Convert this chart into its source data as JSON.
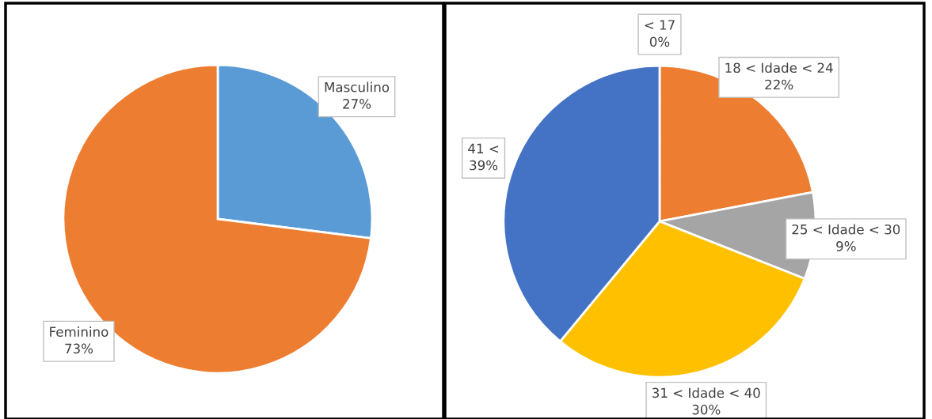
{
  "chart_data": [
    {
      "type": "pie",
      "categories": [
        "Masculino",
        "Feminino"
      ],
      "values": [
        27,
        73
      ],
      "colors": [
        "#5b9bd5",
        "#ed7d31"
      ],
      "value_labels": [
        "27%",
        "73%"
      ]
    },
    {
      "type": "pie",
      "categories": [
        "< 17",
        "18 < Idade < 24",
        "25 < Idade < 30",
        "31 < Idade < 40",
        "41 <"
      ],
      "values": [
        0,
        22,
        9,
        30,
        39
      ],
      "colors": [
        "#5b9bd5",
        "#ed7d31",
        "#a5a5a5",
        "#ffc000",
        "#4472c4"
      ],
      "value_labels": [
        "0%",
        "22%",
        "9%",
        "30%",
        "39%"
      ]
    }
  ]
}
